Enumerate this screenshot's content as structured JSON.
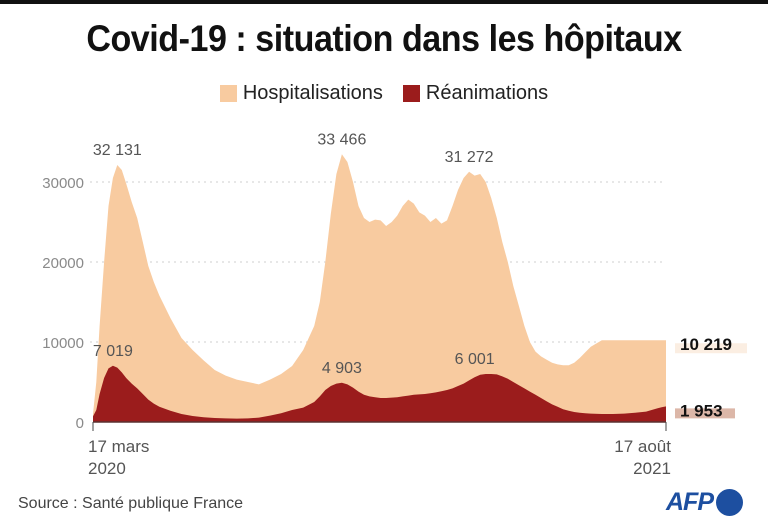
{
  "header": {
    "title": "Covid-19 : situation dans les hôpitaux"
  },
  "footer": {
    "source": "Source : Santé publique France",
    "logo": "AFP"
  },
  "colors": {
    "hosp": "#f8cba0",
    "rea": "#9b1c1c",
    "hosp_label_bg": "#fbeee2",
    "rea_label_bg": "#dcb7a8",
    "axis": "#555",
    "grid": "#cfcfcf",
    "brand": "#1d4fa0"
  },
  "chart_data": {
    "type": "area",
    "title": "Covid-19 : situation dans les hôpitaux",
    "xlabel": "",
    "ylabel": "",
    "ylim": [
      0,
      35000
    ],
    "yticks": [
      0,
      10000,
      20000,
      30000
    ],
    "ytick_labels": [
      "0",
      "10000",
      "20000",
      "30000"
    ],
    "grid": true,
    "legend_position": "top-center",
    "x_unit": "days since 17 mars 2020",
    "xlim": [
      0,
      518
    ],
    "x_tick_labels": [
      {
        "x": 0,
        "line1": "17 mars",
        "line2": "2020"
      },
      {
        "x": 518,
        "line1": "17 août",
        "line2": "2021"
      }
    ],
    "series": [
      {
        "name": "Hospitalisations",
        "x": [
          0,
          3,
          6,
          10,
          14,
          18,
          22,
          26,
          30,
          35,
          40,
          45,
          50,
          55,
          60,
          70,
          80,
          90,
          100,
          110,
          120,
          130,
          140,
          150,
          160,
          170,
          180,
          190,
          200,
          205,
          210,
          215,
          220,
          225,
          230,
          235,
          240,
          245,
          250,
          255,
          260,
          265,
          270,
          275,
          280,
          285,
          290,
          295,
          300,
          305,
          310,
          315,
          320,
          325,
          330,
          335,
          340,
          345,
          350,
          355,
          360,
          365,
          370,
          375,
          380,
          385,
          390,
          395,
          400,
          405,
          410,
          415,
          420,
          425,
          430,
          435,
          440,
          445,
          450,
          460,
          470,
          480,
          490,
          500,
          505,
          510,
          514,
          518
        ],
        "values": [
          1000,
          5000,
          12000,
          20000,
          27000,
          30500,
          32131,
          31500,
          29800,
          27500,
          25500,
          22500,
          19500,
          17500,
          15800,
          13000,
          10500,
          9000,
          7700,
          6500,
          5800,
          5300,
          5000,
          4700,
          5300,
          6000,
          7000,
          9000,
          12000,
          15000,
          20000,
          26000,
          31000,
          33466,
          32500,
          30000,
          27000,
          25500,
          25000,
          25300,
          25200,
          24500,
          25000,
          25800,
          27000,
          27800,
          27300,
          26200,
          25800,
          25000,
          25500,
          24800,
          25200,
          27000,
          29000,
          30500,
          31272,
          30800,
          31000,
          30000,
          28000,
          25500,
          22500,
          20000,
          17000,
          14500,
          12000,
          10000,
          8800,
          8200,
          7800,
          7400,
          7200,
          7100,
          7100,
          7400,
          8000,
          8700,
          9400,
          10219,
          10219,
          10219,
          10219,
          10219,
          10219,
          10219,
          10219,
          10219
        ],
        "annotations": [
          {
            "x": 22,
            "value": 32131,
            "label": "32 131"
          },
          {
            "x": 225,
            "value": 33466,
            "label": "33 466"
          },
          {
            "x": 340,
            "value": 31272,
            "label": "31 272"
          }
        ],
        "last_value_label": "10 219"
      },
      {
        "name": "Réanimations",
        "x": [
          0,
          3,
          6,
          10,
          14,
          18,
          22,
          26,
          30,
          35,
          40,
          45,
          50,
          55,
          60,
          70,
          80,
          90,
          100,
          110,
          120,
          130,
          140,
          150,
          160,
          170,
          180,
          190,
          200,
          205,
          210,
          215,
          220,
          225,
          230,
          235,
          240,
          245,
          250,
          255,
          260,
          265,
          270,
          275,
          280,
          285,
          290,
          295,
          300,
          305,
          310,
          315,
          320,
          325,
          330,
          335,
          340,
          345,
          350,
          355,
          360,
          365,
          370,
          375,
          380,
          385,
          390,
          395,
          400,
          405,
          410,
          415,
          420,
          425,
          430,
          435,
          440,
          445,
          450,
          460,
          470,
          480,
          490,
          500,
          505,
          510,
          514,
          518
        ],
        "values": [
          700,
          1500,
          3500,
          5500,
          6700,
          7019,
          6800,
          6200,
          5500,
          4800,
          4200,
          3500,
          2800,
          2300,
          1900,
          1400,
          1000,
          750,
          600,
          500,
          450,
          420,
          450,
          550,
          800,
          1100,
          1500,
          1800,
          2500,
          3200,
          4000,
          4500,
          4800,
          4903,
          4700,
          4300,
          3800,
          3400,
          3200,
          3100,
          3000,
          3000,
          3050,
          3100,
          3200,
          3300,
          3400,
          3450,
          3500,
          3600,
          3700,
          3850,
          4000,
          4200,
          4500,
          4800,
          5200,
          5600,
          5900,
          6001,
          6001,
          5950,
          5700,
          5400,
          5000,
          4600,
          4200,
          3800,
          3400,
          3000,
          2600,
          2200,
          1900,
          1600,
          1400,
          1250,
          1150,
          1100,
          1050,
          1000,
          1000,
          1050,
          1150,
          1300,
          1500,
          1700,
          1850,
          1953
        ],
        "annotations": [
          {
            "x": 18,
            "value": 7019,
            "label": "7 019"
          },
          {
            "x": 225,
            "value": 4903,
            "label": "4 903"
          },
          {
            "x": 345,
            "value": 6001,
            "label": "6 001"
          }
        ],
        "last_value_label": "1 953"
      }
    ]
  }
}
